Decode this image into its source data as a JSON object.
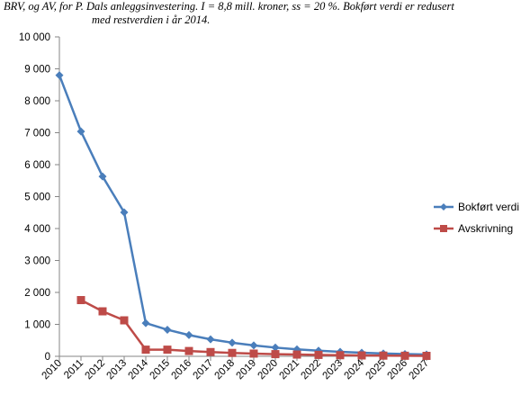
{
  "title_line1": "BRV, og AV, for P. Dals anleggsinvestering. I = 8,8 mill. kroner, ss = 20 %. Bokført verdi er redusert",
  "title_line2": "med restverdien  i år 2014.",
  "chart_data": {
    "type": "line",
    "title": "BRV, og AV, for P. Dals anleggsinvestering. I = 8,8 mill. kroner, ss = 20 %. Bokført verdi er redusert med restverdien  i år 2014.",
    "xlabel": "",
    "ylabel": "",
    "ylim": [
      0,
      10000
    ],
    "yticks": [
      0,
      1000,
      2000,
      3000,
      4000,
      5000,
      6000,
      7000,
      8000,
      9000,
      10000
    ],
    "ytick_labels": [
      "0",
      "1 000",
      "2 000",
      "3 000",
      "4 000",
      "5 000",
      "6 000",
      "7 000",
      "8 000",
      "9 000",
      "10 000"
    ],
    "categories": [
      "2010",
      "2011",
      "2012",
      "2013",
      "2014",
      "2015",
      "2016",
      "2017",
      "2018",
      "2019",
      "2020",
      "2021",
      "2022",
      "2023",
      "2024",
      "2025",
      "2026",
      "2027"
    ],
    "series": [
      {
        "name": "Bokført verdi",
        "color": "#4A7EBB",
        "marker": "diamond",
        "values": [
          8800,
          7040,
          5632,
          4506,
          1040,
          832,
          666,
          532,
          426,
          341,
          273,
          218,
          175,
          140,
          112,
          89,
          72,
          57
        ]
      },
      {
        "name": "Avskrivning",
        "color": "#BE4B48",
        "marker": "square",
        "values": [
          null,
          1760,
          1408,
          1126,
          208,
          208,
          166,
          133,
          106,
          85,
          68,
          55,
          44,
          35,
          28,
          22,
          18,
          14
        ]
      }
    ],
    "grid": false,
    "legend_position": "right"
  }
}
